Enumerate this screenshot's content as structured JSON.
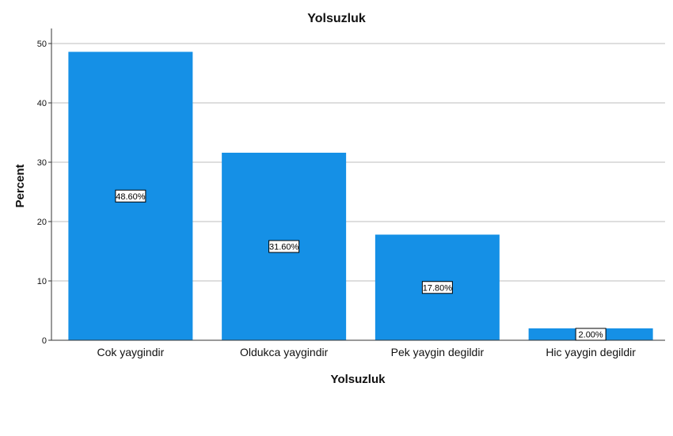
{
  "chart_data": {
    "type": "bar",
    "title": "Yolsuzluk",
    "xlabel": "Yolsuzluk",
    "ylabel": "Percent",
    "categories": [
      "Cok yaygindir",
      "Oldukca yaygindir",
      "Pek yaygin degildir",
      "Hic yaygin degildir"
    ],
    "values": [
      48.6,
      31.6,
      17.8,
      2.0
    ],
    "data_labels": [
      "48.60%",
      "31.60%",
      "17.80%",
      "2.00%"
    ],
    "ylim": [
      0,
      50
    ],
    "yticks": [
      "0",
      "10",
      "20",
      "30",
      "40",
      "50"
    ],
    "grid": true,
    "bar_color": "#1590E6",
    "grid_color": "#bdbdbd"
  }
}
